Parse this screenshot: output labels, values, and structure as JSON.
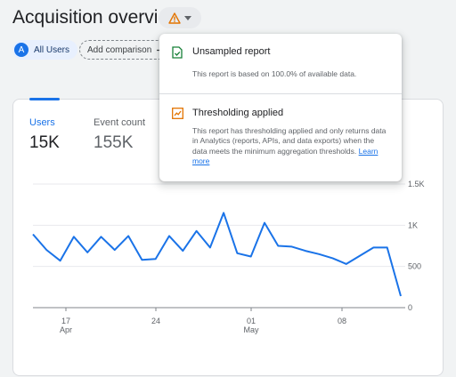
{
  "header": {
    "title": "Acquisition overview",
    "warning_icon": "warning-triangle-icon",
    "dropdown_icon": "caret-down-icon"
  },
  "chips": {
    "segment": {
      "avatar": "A",
      "label": "All Users"
    },
    "add_comparison": {
      "label": "Add comparison",
      "icon": "plus-icon"
    }
  },
  "metrics": [
    {
      "label": "Users",
      "value": "15K",
      "active": true
    },
    {
      "label": "Event count",
      "value": "155K",
      "active": false
    }
  ],
  "popover": {
    "sections": [
      {
        "icon": "check-document-icon",
        "title": "Unsampled report",
        "text": "This report is based on 100.0% of available data."
      },
      {
        "icon": "trend-chart-warning-icon",
        "title": "Thresholding applied",
        "text": "This report has thresholding applied and only returns data in Analytics (reports, APIs, and data exports) when the data meets the minimum aggregation thresholds.",
        "link": "Learn more"
      }
    ]
  },
  "colors": {
    "accent": "#1a73e8",
    "warning": "#e37400",
    "success": "#188038"
  },
  "chart_data": {
    "type": "line",
    "y_ticks": [
      "1.5K",
      "1K",
      "500",
      "0"
    ],
    "ylim": [
      0,
      1500
    ],
    "x_ticks": [
      {
        "day": "17",
        "month": "Apr"
      },
      {
        "day": "24",
        "month": ""
      },
      {
        "day": "01",
        "month": "May"
      },
      {
        "day": "08",
        "month": ""
      }
    ],
    "grid": true,
    "series": [
      {
        "values": [
          890,
          700,
          570,
          860,
          670,
          860,
          700,
          870,
          580,
          590,
          870,
          690,
          930,
          730,
          1150,
          660,
          620,
          1030,
          750,
          740,
          690,
          650,
          600,
          530,
          630,
          730,
          730,
          140
        ]
      }
    ]
  }
}
